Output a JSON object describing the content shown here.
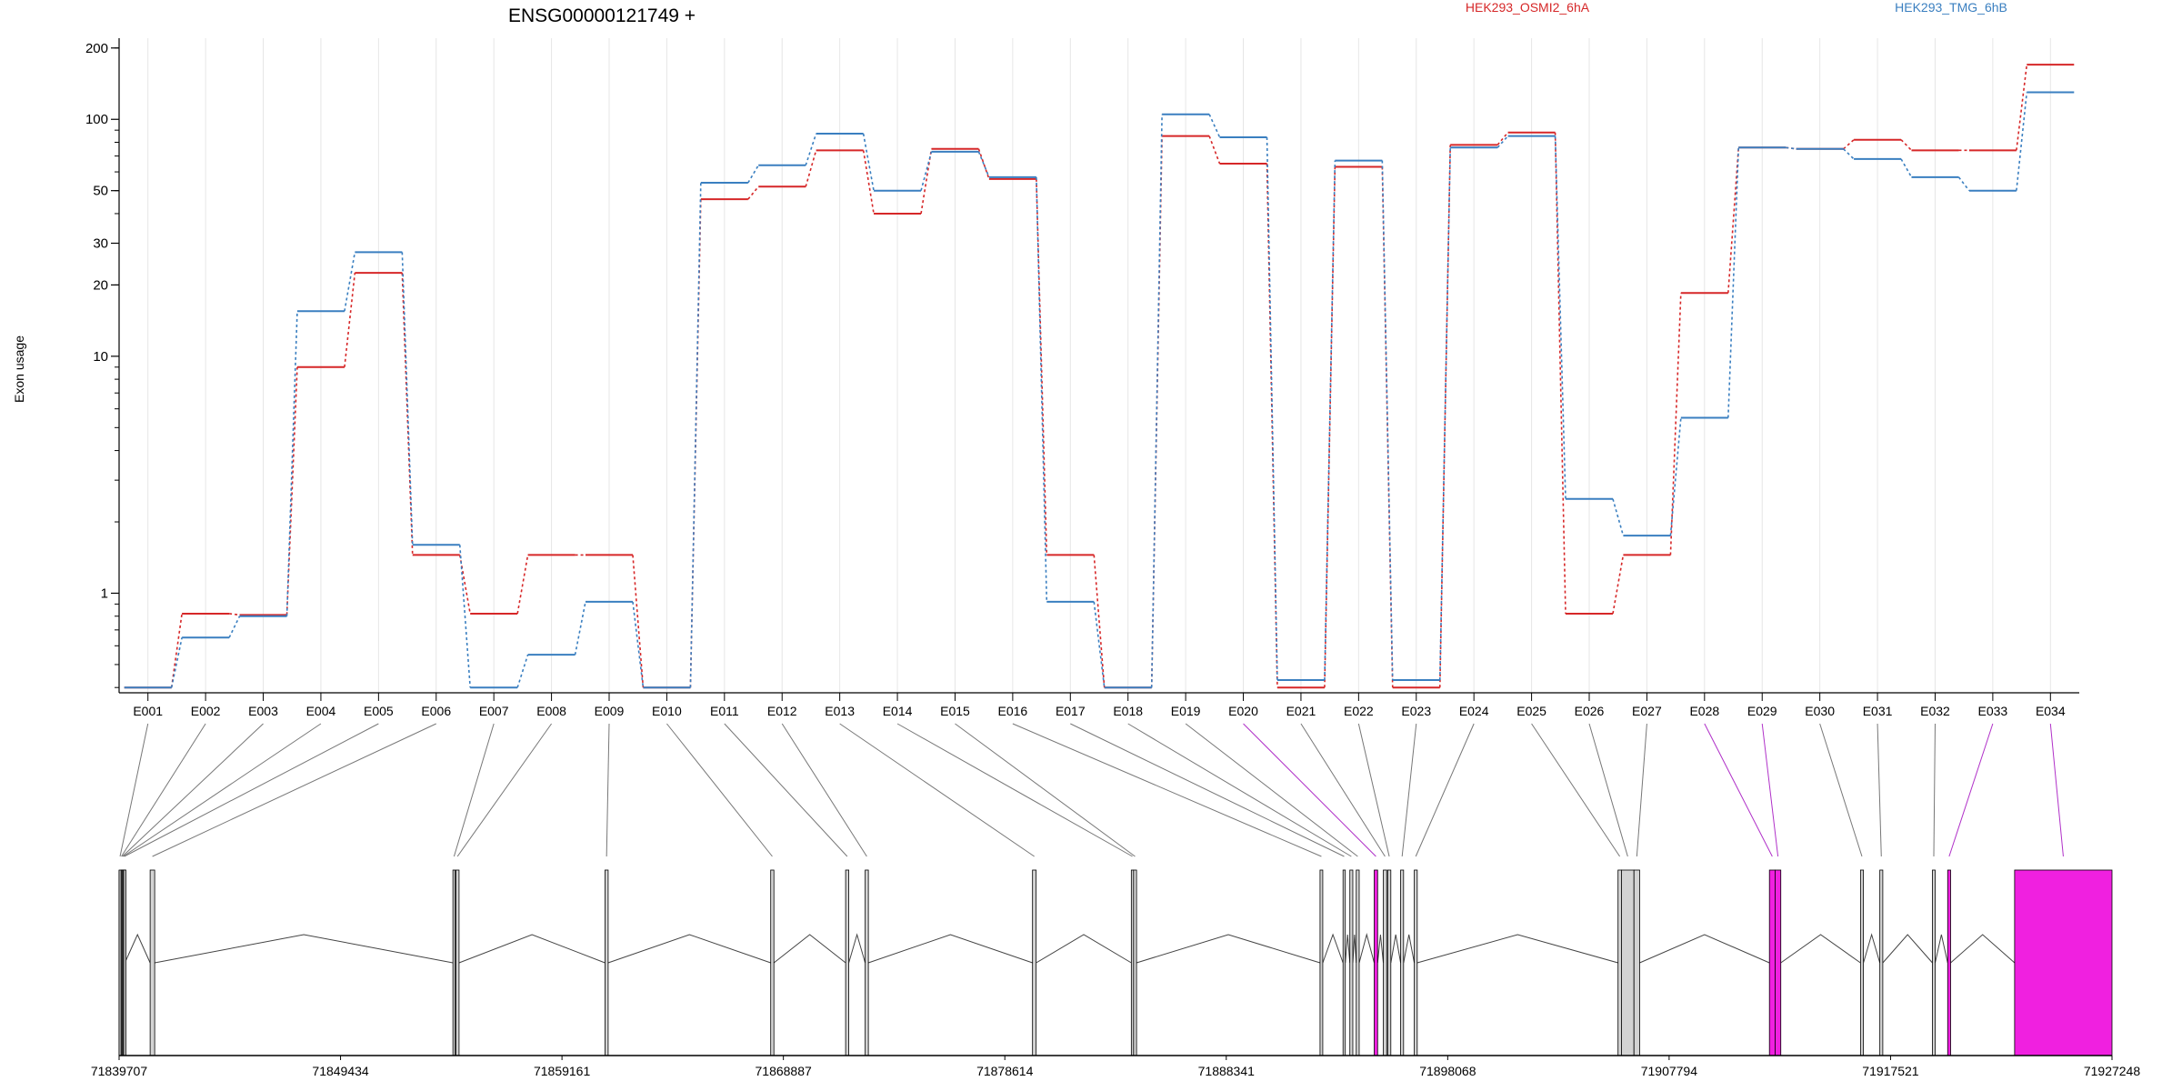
{
  "title": "ENSG00000121749 +",
  "ylabel": "Exon usage",
  "legend": [
    {
      "name": "HEK293_OSMI2_6hA",
      "color": "#d62728"
    },
    {
      "name": "HEK293_TMG_6hB",
      "color": "#3a7fc0"
    }
  ],
  "chart_data": [
    {
      "type": "line",
      "title": "ENSG00000121749 +",
      "ylabel": "Exon usage",
      "ylog": true,
      "ylim": [
        0.38,
        220
      ],
      "yticks": [
        {
          "v": 200,
          "label": "200"
        },
        {
          "v": 100,
          "label": "100"
        },
        {
          "v": 50,
          "label": "50"
        },
        {
          "v": 30,
          "label": "30"
        },
        {
          "v": 20,
          "label": "20"
        },
        {
          "v": 10,
          "label": "10"
        },
        {
          "v": 1,
          "label": "1"
        }
      ],
      "categories": [
        "E001",
        "E002",
        "E003",
        "E004",
        "E005",
        "E006",
        "E007",
        "E008",
        "E009",
        "E010",
        "E011",
        "E012",
        "E013",
        "E014",
        "E015",
        "E016",
        "E017",
        "E018",
        "E019",
        "E020",
        "E021",
        "E022",
        "E023",
        "E024",
        "E025",
        "E026",
        "E027",
        "E028",
        "E029",
        "E030",
        "E031",
        "E032",
        "E033",
        "E034"
      ],
      "series": [
        {
          "name": "HEK293_OSMI2_6hA",
          "color": "#d62728",
          "values": [
            0.4,
            0.82,
            0.81,
            9,
            22.5,
            1.45,
            0.82,
            1.45,
            1.45,
            0.4,
            46,
            52,
            74,
            40,
            75,
            56,
            1.45,
            0.4,
            85,
            65,
            0.4,
            63,
            0.4,
            78,
            88,
            0.82,
            1.45,
            18.5,
            76,
            75,
            82,
            74,
            74,
            170
          ]
        },
        {
          "name": "HEK293_TMG_6hB",
          "color": "#3a7fc0",
          "values": [
            0.4,
            0.65,
            0.8,
            15.5,
            27.5,
            1.6,
            0.4,
            0.55,
            0.92,
            0.4,
            54,
            64,
            87,
            50,
            73,
            57,
            0.92,
            0.4,
            105,
            84,
            0.43,
            67,
            0.43,
            76,
            85,
            2.5,
            1.75,
            5.5,
            76,
            75,
            68,
            57,
            50,
            130
          ]
        }
      ]
    },
    {
      "type": "gene-model",
      "xticks": [
        "71839707",
        "71849434",
        "71859161",
        "71868887",
        "71878614",
        "71888341",
        "71898068",
        "71907794",
        "71917521",
        "71927248"
      ],
      "exon_fill": "#d3d3d3",
      "highlight_fill": "#f020e0",
      "exons": [
        {
          "id": "E001",
          "start": 71839707,
          "end": 71839790
        },
        {
          "id": "E002",
          "start": 71839790,
          "end": 71839830
        },
        {
          "id": "E003",
          "start": 71839830,
          "end": 71839870
        },
        {
          "id": "E004",
          "start": 71839870,
          "end": 71839910
        },
        {
          "id": "E005",
          "start": 71839910,
          "end": 71839960
        },
        {
          "id": "E006",
          "start": 71841070,
          "end": 71841270
        },
        {
          "id": "E007",
          "start": 71854370,
          "end": 71854470
        },
        {
          "id": "E008",
          "start": 71854500,
          "end": 71854640
        },
        {
          "id": "E009",
          "start": 71861050,
          "end": 71861190
        },
        {
          "id": "E010",
          "start": 71868330,
          "end": 71868470
        },
        {
          "id": "E011",
          "start": 71871620,
          "end": 71871760
        },
        {
          "id": "E012",
          "start": 71872480,
          "end": 71872620
        },
        {
          "id": "E013",
          "start": 71879830,
          "end": 71879990
        },
        {
          "id": "E014",
          "start": 71884170,
          "end": 71884270
        },
        {
          "id": "E015",
          "start": 71884270,
          "end": 71884400
        },
        {
          "id": "E016",
          "start": 71892460,
          "end": 71892580
        },
        {
          "id": "E017",
          "start": 71893470,
          "end": 71893570
        },
        {
          "id": "E018",
          "start": 71893770,
          "end": 71893900
        },
        {
          "id": "E019",
          "start": 71894050,
          "end": 71894180
        },
        {
          "id": "E020",
          "start": 71894840,
          "end": 71894990,
          "highlight": true
        },
        {
          "id": "E021",
          "start": 71895240,
          "end": 71895390
        },
        {
          "id": "E022",
          "start": 71895430,
          "end": 71895570
        },
        {
          "id": "E023",
          "start": 71896000,
          "end": 71896130
        },
        {
          "id": "E024",
          "start": 71896600,
          "end": 71896730
        },
        {
          "id": "E025",
          "start": 71905550,
          "end": 71905700
        },
        {
          "id": "E026",
          "start": 71905700,
          "end": 71906250
        },
        {
          "id": "E027",
          "start": 71906250,
          "end": 71906500
        },
        {
          "id": "E028",
          "start": 71912200,
          "end": 71912450,
          "highlight": true
        },
        {
          "id": "E029",
          "start": 71912450,
          "end": 71912700,
          "highlight": true
        },
        {
          "id": "E030",
          "start": 71916200,
          "end": 71916330
        },
        {
          "id": "E031",
          "start": 71917050,
          "end": 71917180
        },
        {
          "id": "E032",
          "start": 71919360,
          "end": 71919480
        },
        {
          "id": "E033",
          "start": 71920030,
          "end": 71920160,
          "highlight": true
        },
        {
          "id": "E034",
          "start": 71922970,
          "end": 71927248,
          "highlight": true
        }
      ]
    }
  ]
}
